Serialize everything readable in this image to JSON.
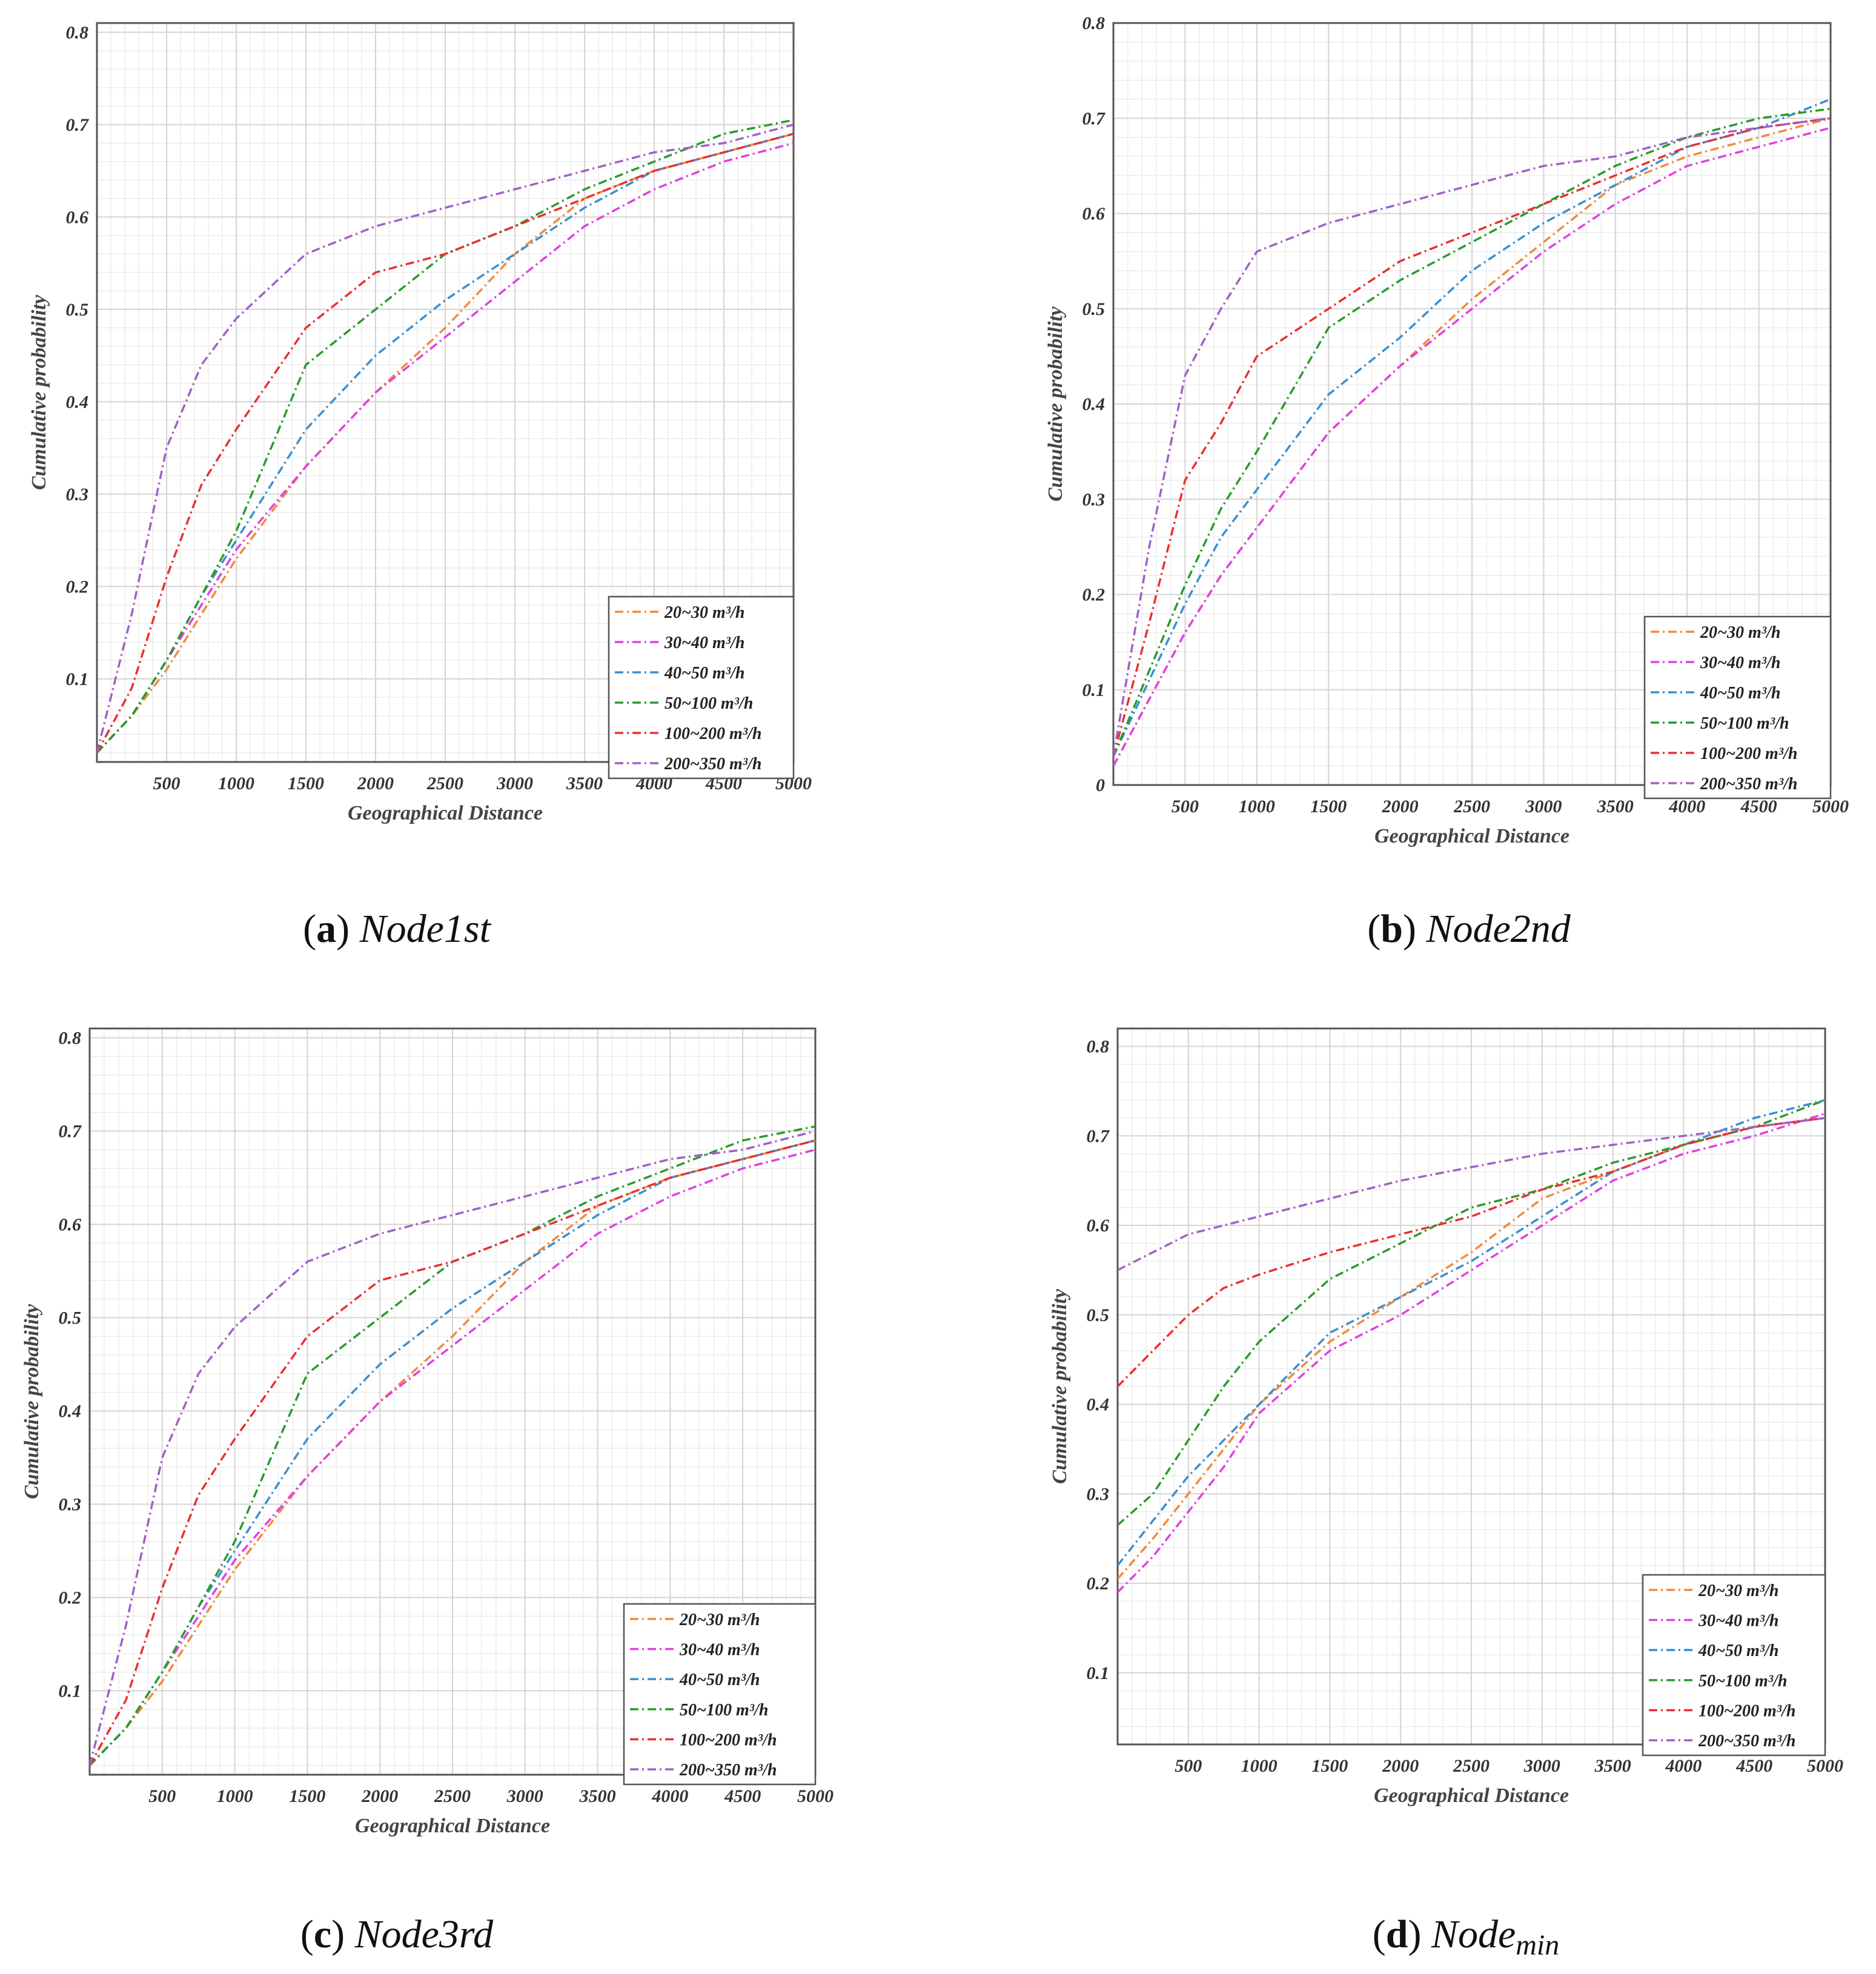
{
  "figure": {
    "captions": [
      {
        "letter": "a",
        "text": "Node1st",
        "sub": ""
      },
      {
        "letter": "b",
        "text": "Node2nd",
        "sub": ""
      },
      {
        "letter": "c",
        "text": "Node3rd",
        "sub": ""
      },
      {
        "letter": "d",
        "text": "Node",
        "sub": "min"
      }
    ]
  },
  "chart_data": [
    {
      "id": "a",
      "type": "line",
      "title": "Node1st",
      "xlabel": "Geographical Distance",
      "ylabel": "Cumulative probability",
      "xlim": [
        0,
        5000
      ],
      "ylim": [
        0.01,
        0.81
      ],
      "xticks": [
        500,
        1000,
        1500,
        2000,
        2500,
        3000,
        3500,
        4000,
        4500,
        5000
      ],
      "yticks": [
        0.1,
        0.2,
        0.3,
        0.4,
        0.5,
        0.6,
        0.7,
        0.8
      ],
      "grid": true,
      "legend_position": "bottom-right",
      "x": [
        0,
        250,
        500,
        750,
        1000,
        1500,
        2000,
        2500,
        3000,
        3500,
        4000,
        4500,
        5000
      ],
      "series": [
        {
          "name": "20~30 m³/h",
          "color": "#f08a3c",
          "values": [
            0.02,
            0.06,
            0.11,
            0.17,
            0.23,
            0.33,
            0.41,
            0.48,
            0.56,
            0.62,
            0.65,
            0.67,
            0.69
          ]
        },
        {
          "name": "30~40 m³/h",
          "color": "#e040e0",
          "values": [
            0.02,
            0.06,
            0.12,
            0.18,
            0.24,
            0.33,
            0.41,
            0.47,
            0.53,
            0.59,
            0.63,
            0.66,
            0.68
          ]
        },
        {
          "name": "40~50 m³/h",
          "color": "#3a8fd0",
          "values": [
            0.02,
            0.06,
            0.12,
            0.19,
            0.25,
            0.37,
            0.45,
            0.51,
            0.56,
            0.61,
            0.65,
            0.67,
            0.69
          ]
        },
        {
          "name": "50~100 m³/h",
          "color": "#2a9a2a",
          "values": [
            0.02,
            0.06,
            0.12,
            0.19,
            0.26,
            0.44,
            0.5,
            0.56,
            0.59,
            0.63,
            0.66,
            0.69,
            0.705
          ]
        },
        {
          "name": "100~200 m³/h",
          "color": "#e83030",
          "values": [
            0.02,
            0.09,
            0.21,
            0.31,
            0.37,
            0.48,
            0.54,
            0.56,
            0.59,
            0.62,
            0.65,
            0.67,
            0.69
          ]
        },
        {
          "name": "200~350 m³/h",
          "color": "#a060c8",
          "values": [
            0.02,
            0.17,
            0.35,
            0.44,
            0.49,
            0.56,
            0.59,
            0.61,
            0.63,
            0.65,
            0.67,
            0.68,
            0.7
          ]
        }
      ]
    },
    {
      "id": "b",
      "type": "line",
      "title": "Node2nd",
      "xlabel": "Geographical Distance",
      "ylabel": "Cumulative probability",
      "xlim": [
        0,
        5000
      ],
      "ylim": [
        0,
        0.8
      ],
      "xticks": [
        500,
        1000,
        1500,
        2000,
        2500,
        3000,
        3500,
        4000,
        4500,
        5000
      ],
      "yticks": [
        0,
        0.1,
        0.2,
        0.3,
        0.4,
        0.5,
        0.6,
        0.7,
        0.8
      ],
      "grid": true,
      "legend_position": "bottom-right",
      "x": [
        0,
        250,
        500,
        750,
        1000,
        1500,
        2000,
        2500,
        3000,
        3500,
        4000,
        4500,
        5000
      ],
      "series": [
        {
          "name": "20~30 m³/h",
          "color": "#f08a3c",
          "values": [
            0.02,
            0.09,
            0.16,
            0.22,
            0.27,
            0.37,
            0.44,
            0.51,
            0.57,
            0.63,
            0.66,
            0.68,
            0.7
          ]
        },
        {
          "name": "30~40 m³/h",
          "color": "#e040e0",
          "values": [
            0.02,
            0.09,
            0.16,
            0.22,
            0.27,
            0.37,
            0.44,
            0.5,
            0.56,
            0.61,
            0.65,
            0.67,
            0.69
          ]
        },
        {
          "name": "40~50 m³/h",
          "color": "#3a8fd0",
          "values": [
            0.03,
            0.11,
            0.19,
            0.26,
            0.31,
            0.41,
            0.47,
            0.54,
            0.59,
            0.63,
            0.67,
            0.69,
            0.72
          ]
        },
        {
          "name": "50~100 m³/h",
          "color": "#2a9a2a",
          "values": [
            0.03,
            0.12,
            0.21,
            0.29,
            0.35,
            0.48,
            0.53,
            0.57,
            0.61,
            0.65,
            0.68,
            0.7,
            0.71
          ]
        },
        {
          "name": "100~200 m³/h",
          "color": "#e83030",
          "values": [
            0.03,
            0.17,
            0.32,
            0.38,
            0.45,
            0.5,
            0.55,
            0.58,
            0.61,
            0.64,
            0.67,
            0.69,
            0.7
          ]
        },
        {
          "name": "200~350 m³/h",
          "color": "#a060c8",
          "values": [
            0.03,
            0.25,
            0.43,
            0.5,
            0.56,
            0.59,
            0.61,
            0.63,
            0.65,
            0.66,
            0.68,
            0.69,
            0.7
          ]
        }
      ]
    },
    {
      "id": "c",
      "type": "line",
      "title": "Node3rd",
      "xlabel": "Geographical Distance",
      "ylabel": "Cumulative probability",
      "xlim": [
        0,
        5000
      ],
      "ylim": [
        0.01,
        0.81
      ],
      "xticks": [
        500,
        1000,
        1500,
        2000,
        2500,
        3000,
        3500,
        4000,
        4500,
        5000
      ],
      "yticks": [
        0.1,
        0.2,
        0.3,
        0.4,
        0.5,
        0.6,
        0.7,
        0.8
      ],
      "grid": true,
      "legend_position": "bottom-right",
      "x": [
        0,
        250,
        500,
        750,
        1000,
        1500,
        2000,
        2500,
        3000,
        3500,
        4000,
        4500,
        5000
      ],
      "series": [
        {
          "name": "20~30 m³/h",
          "color": "#f08a3c",
          "values": [
            0.02,
            0.06,
            0.11,
            0.17,
            0.23,
            0.33,
            0.41,
            0.48,
            0.56,
            0.62,
            0.65,
            0.67,
            0.69
          ]
        },
        {
          "name": "30~40 m³/h",
          "color": "#e040e0",
          "values": [
            0.02,
            0.06,
            0.12,
            0.18,
            0.24,
            0.33,
            0.41,
            0.47,
            0.53,
            0.59,
            0.63,
            0.66,
            0.68
          ]
        },
        {
          "name": "40~50 m³/h",
          "color": "#3a8fd0",
          "values": [
            0.02,
            0.06,
            0.12,
            0.19,
            0.25,
            0.37,
            0.45,
            0.51,
            0.56,
            0.61,
            0.65,
            0.67,
            0.69
          ]
        },
        {
          "name": "50~100 m³/h",
          "color": "#2a9a2a",
          "values": [
            0.02,
            0.06,
            0.12,
            0.19,
            0.26,
            0.44,
            0.5,
            0.56,
            0.59,
            0.63,
            0.66,
            0.69,
            0.705
          ]
        },
        {
          "name": "100~200 m³/h",
          "color": "#e83030",
          "values": [
            0.02,
            0.09,
            0.21,
            0.31,
            0.37,
            0.48,
            0.54,
            0.56,
            0.59,
            0.62,
            0.65,
            0.67,
            0.69
          ]
        },
        {
          "name": "200~350 m³/h",
          "color": "#a060c8",
          "values": [
            0.02,
            0.17,
            0.35,
            0.44,
            0.49,
            0.56,
            0.59,
            0.61,
            0.63,
            0.65,
            0.67,
            0.68,
            0.7
          ]
        }
      ]
    },
    {
      "id": "d",
      "type": "line",
      "title": "Nodemin",
      "xlabel": "Geographical Distance",
      "ylabel": "Cumulative probability",
      "xlim": [
        0,
        5000
      ],
      "ylim": [
        0.02,
        0.82
      ],
      "xticks": [
        500,
        1000,
        1500,
        2000,
        2500,
        3000,
        3500,
        4000,
        4500,
        5000
      ],
      "yticks": [
        0.1,
        0.2,
        0.3,
        0.4,
        0.5,
        0.6,
        0.7,
        0.8
      ],
      "grid": true,
      "legend_position": "bottom-right",
      "x": [
        0,
        250,
        500,
        750,
        1000,
        1500,
        2000,
        2500,
        3000,
        3500,
        4000,
        4500,
        5000
      ],
      "series": [
        {
          "name": "20~30 m³/h",
          "color": "#f08a3c",
          "values": [
            0.205,
            0.25,
            0.3,
            0.35,
            0.4,
            0.47,
            0.52,
            0.57,
            0.63,
            0.66,
            0.69,
            0.71,
            0.72
          ]
        },
        {
          "name": "30~40 m³/h",
          "color": "#e040e0",
          "values": [
            0.19,
            0.23,
            0.28,
            0.33,
            0.39,
            0.46,
            0.5,
            0.55,
            0.6,
            0.65,
            0.68,
            0.7,
            0.725
          ]
        },
        {
          "name": "40~50 m³/h",
          "color": "#3a8fd0",
          "values": [
            0.22,
            0.27,
            0.32,
            0.36,
            0.4,
            0.48,
            0.52,
            0.56,
            0.61,
            0.66,
            0.69,
            0.72,
            0.74
          ]
        },
        {
          "name": "50~100 m³/h",
          "color": "#2a9a2a",
          "values": [
            0.265,
            0.3,
            0.36,
            0.42,
            0.47,
            0.54,
            0.58,
            0.62,
            0.64,
            0.67,
            0.69,
            0.71,
            0.74
          ]
        },
        {
          "name": "100~200 m³/h",
          "color": "#e83030",
          "values": [
            0.42,
            0.46,
            0.5,
            0.53,
            0.545,
            0.57,
            0.59,
            0.61,
            0.64,
            0.66,
            0.69,
            0.71,
            0.72
          ]
        },
        {
          "name": "200~350 m³/h",
          "color": "#a060c8",
          "values": [
            0.55,
            0.57,
            0.59,
            0.6,
            0.61,
            0.63,
            0.65,
            0.665,
            0.68,
            0.69,
            0.7,
            0.71,
            0.72
          ]
        }
      ]
    }
  ]
}
